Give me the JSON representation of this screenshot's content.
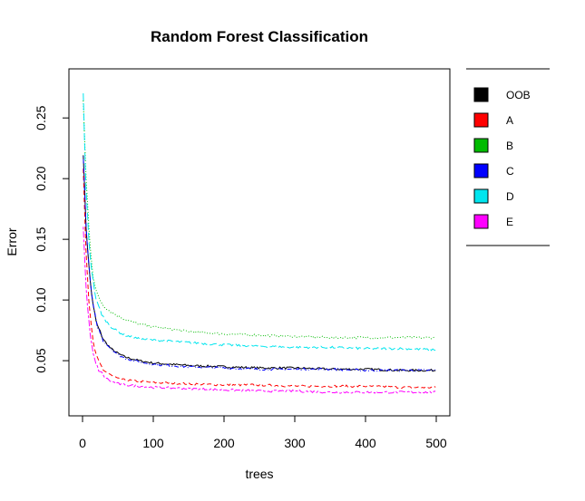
{
  "chart_data": {
    "type": "line",
    "title": "Random Forest Classification",
    "xlabel": "trees",
    "ylabel": "Error",
    "xlim": [
      0,
      500
    ],
    "ylim": [
      0.015,
      0.28
    ],
    "x_ticks": [
      0,
      100,
      200,
      300,
      400,
      500
    ],
    "y_ticks": [
      0.05,
      0.1,
      0.15,
      0.2,
      0.25
    ],
    "y_tick_labels": [
      "0.05",
      "0.10",
      "0.15",
      "0.20",
      "0.25"
    ],
    "grid": false,
    "legend_position": "right",
    "x": [
      1,
      5,
      10,
      15,
      20,
      30,
      40,
      50,
      60,
      80,
      100,
      150,
      200,
      250,
      300,
      350,
      400,
      450,
      500
    ],
    "series": [
      {
        "name": "OOB",
        "color": "#000000",
        "dash": "solid",
        "values": [
          0.221,
          0.16,
          0.12,
          0.095,
          0.08,
          0.067,
          0.06,
          0.056,
          0.053,
          0.05,
          0.048,
          0.046,
          0.045,
          0.044,
          0.044,
          0.043,
          0.043,
          0.042,
          0.042
        ]
      },
      {
        "name": "A",
        "color": "#ff0000",
        "dash": "dashed",
        "values": [
          0.21,
          0.14,
          0.09,
          0.065,
          0.052,
          0.042,
          0.038,
          0.035,
          0.034,
          0.033,
          0.032,
          0.031,
          0.03,
          0.03,
          0.029,
          0.029,
          0.029,
          0.028,
          0.028
        ]
      },
      {
        "name": "B",
        "color": "#00bb00",
        "dash": "dotted",
        "values": [
          0.265,
          0.2,
          0.15,
          0.12,
          0.105,
          0.095,
          0.09,
          0.087,
          0.084,
          0.08,
          0.078,
          0.074,
          0.072,
          0.071,
          0.07,
          0.069,
          0.069,
          0.069,
          0.069
        ]
      },
      {
        "name": "C",
        "color": "#0000ff",
        "dash": "dotdash",
        "values": [
          0.22,
          0.16,
          0.12,
          0.095,
          0.08,
          0.066,
          0.06,
          0.055,
          0.052,
          0.049,
          0.047,
          0.045,
          0.044,
          0.043,
          0.043,
          0.043,
          0.042,
          0.042,
          0.042
        ]
      },
      {
        "name": "D",
        "color": "#00e5ee",
        "dash": "longdash",
        "values": [
          0.27,
          0.19,
          0.14,
          0.115,
          0.098,
          0.085,
          0.078,
          0.074,
          0.071,
          0.068,
          0.067,
          0.065,
          0.063,
          0.062,
          0.061,
          0.061,
          0.06,
          0.06,
          0.059
        ]
      },
      {
        "name": "E",
        "color": "#ff00ff",
        "dash": "twodash",
        "values": [
          0.16,
          0.11,
          0.075,
          0.055,
          0.045,
          0.037,
          0.033,
          0.031,
          0.03,
          0.029,
          0.028,
          0.027,
          0.026,
          0.025,
          0.025,
          0.024,
          0.024,
          0.024,
          0.024
        ]
      }
    ]
  }
}
